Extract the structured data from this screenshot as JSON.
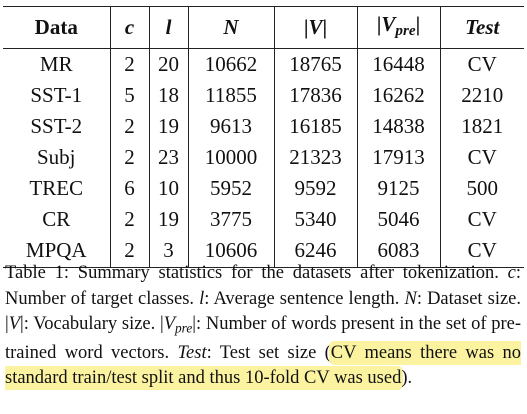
{
  "table": {
    "headers": {
      "data": "Data",
      "c": "c",
      "l": "l",
      "n": "N",
      "v_left": "|",
      "v_var": "V",
      "v_right": "|",
      "vpre_left": "|",
      "vpre_var": "V",
      "vpre_sub": "pre",
      "vpre_right": "|",
      "test": "Test"
    },
    "rows": [
      {
        "data": "MR",
        "c": "2",
        "l": "20",
        "n": "10662",
        "v": "18765",
        "vpre": "16448",
        "test": "CV"
      },
      {
        "data": "SST-1",
        "c": "5",
        "l": "18",
        "n": "11855",
        "v": "17836",
        "vpre": "16262",
        "test": "2210"
      },
      {
        "data": "SST-2",
        "c": "2",
        "l": "19",
        "n": "9613",
        "v": "16185",
        "vpre": "14838",
        "test": "1821"
      },
      {
        "data": "Subj",
        "c": "2",
        "l": "23",
        "n": "10000",
        "v": "21323",
        "vpre": "17913",
        "test": "CV"
      },
      {
        "data": "TREC",
        "c": "6",
        "l": "10",
        "n": "5952",
        "v": "9592",
        "vpre": "9125",
        "test": "500"
      },
      {
        "data": "CR",
        "c": "2",
        "l": "19",
        "n": "3775",
        "v": "5340",
        "vpre": "5046",
        "test": "CV"
      },
      {
        "data": "MPQA",
        "c": "2",
        "l": "3",
        "n": "10606",
        "v": "6246",
        "vpre": "6083",
        "test": "CV"
      }
    ]
  },
  "caption": {
    "p1": "Table 1: Summary statistics for the datasets after tokenization. ",
    "c_var": "c",
    "p2": ": Number of target classes. ",
    "l_var": "l",
    "p3": ": Average sentence length. ",
    "n_var": "N",
    "p4": ": Dataset size. |",
    "v_var": "V",
    "p5": "|: Vocabulary size. |",
    "vpre_var": "V",
    "vpre_sub": "pre",
    "p6": "|: Number of words present in the set of pre-trained word vectors. ",
    "test_var": "Test",
    "p7": ": Test set size (",
    "highlight": "CV means there was no standard train/test split and thus 10-fold CV was used",
    "p8": ")."
  },
  "colors": {
    "highlight": "#fbf3a0",
    "text": "#111111",
    "rule": "#222222"
  }
}
